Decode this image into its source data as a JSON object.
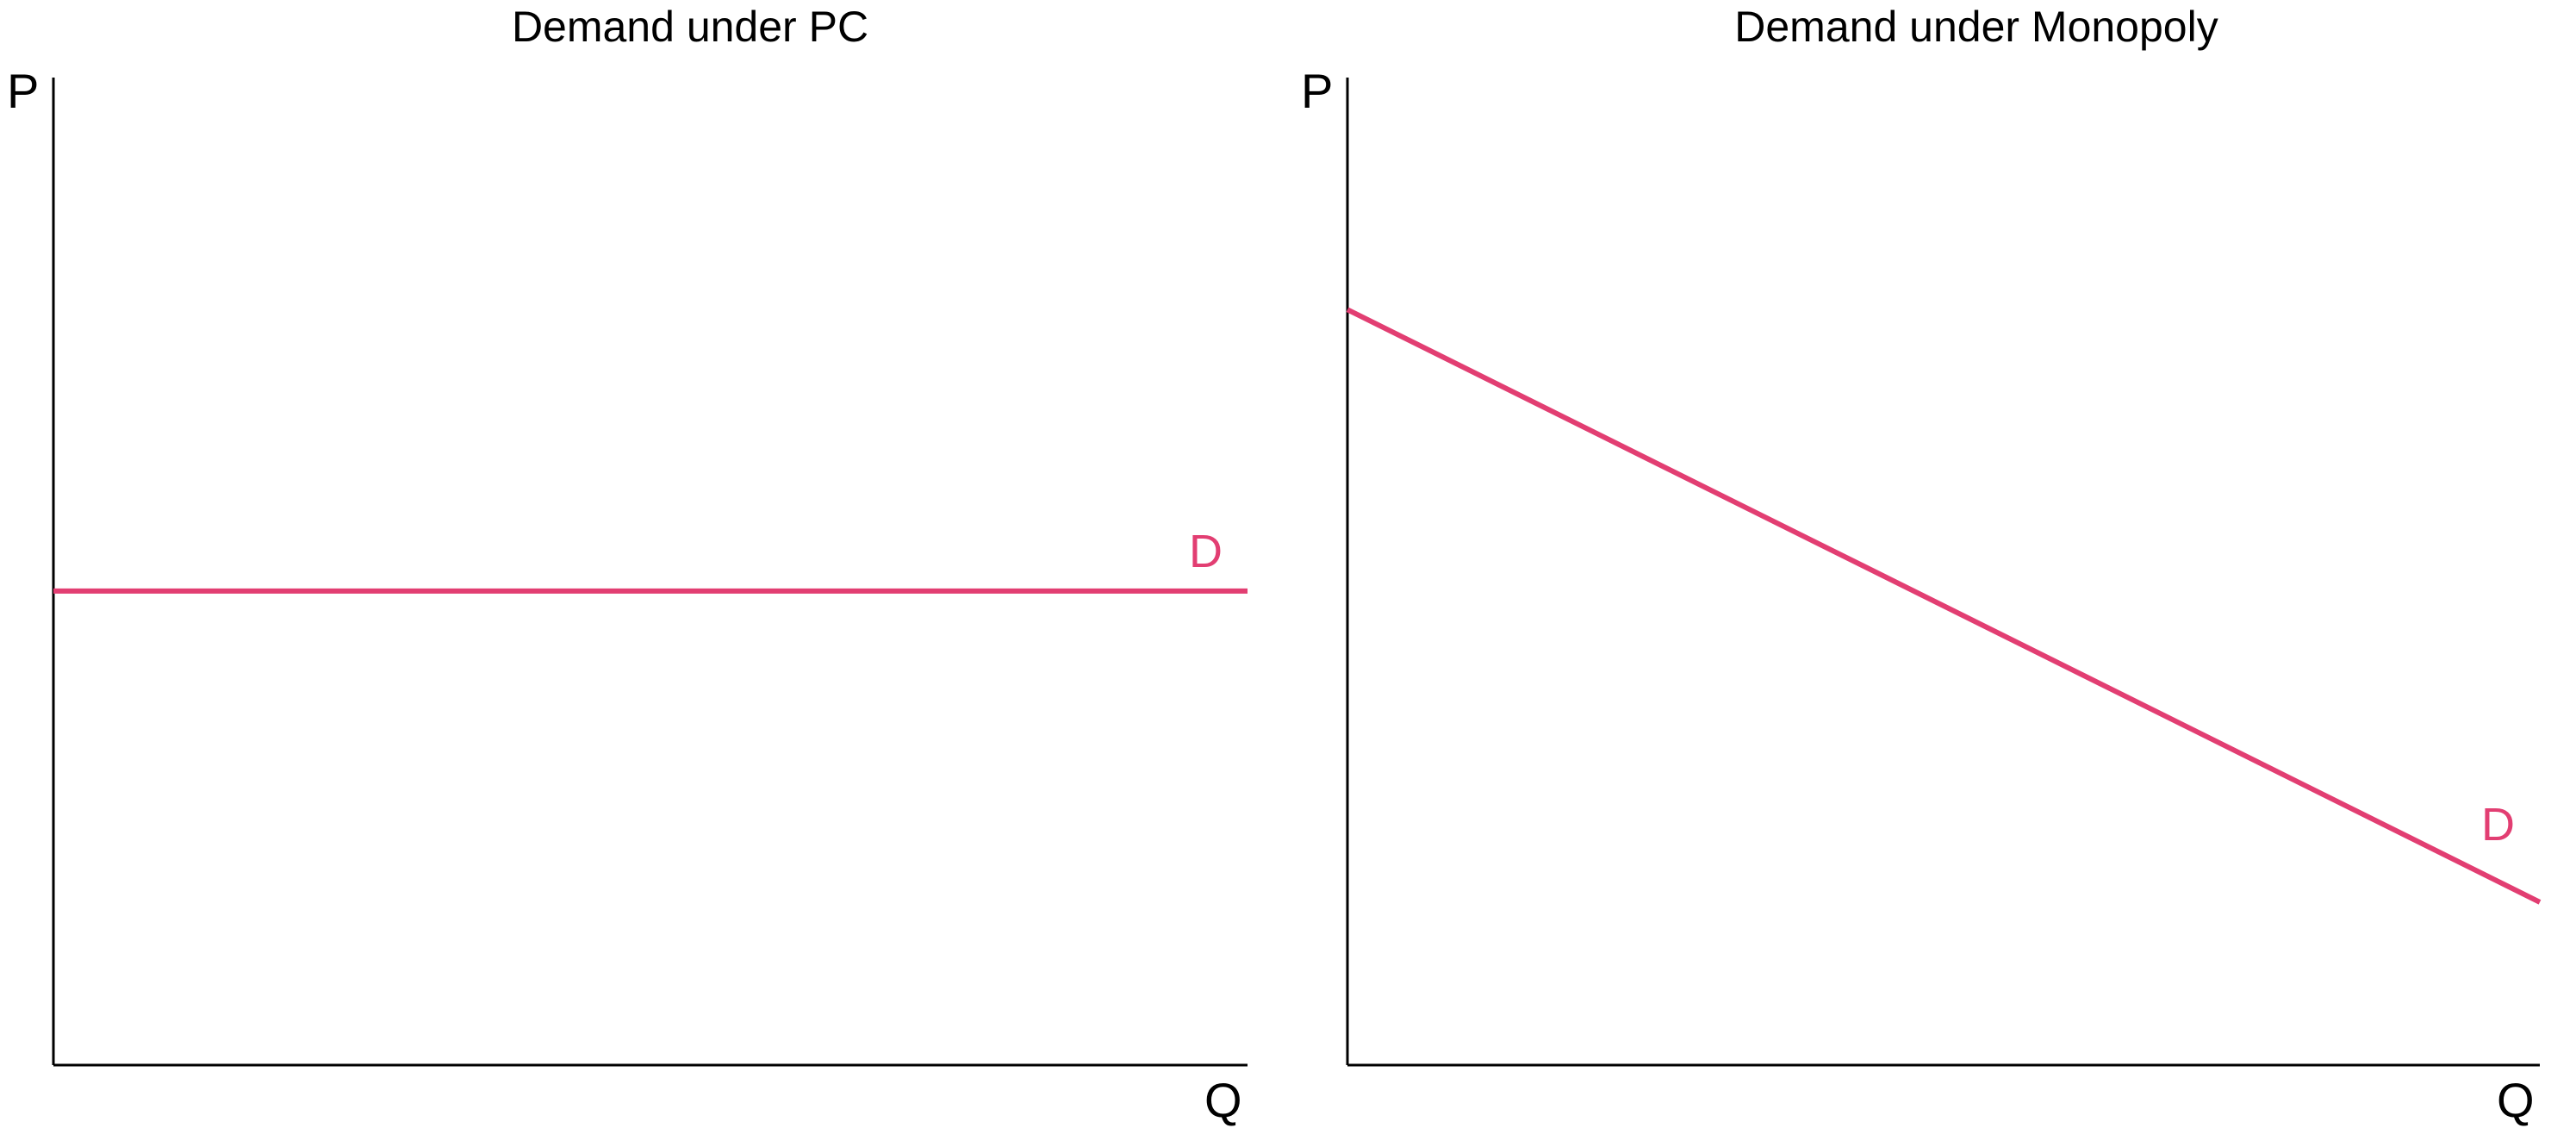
{
  "colors": {
    "demand": "#e23e72",
    "axis": "#000000",
    "background": "#ffffff"
  },
  "chart_data": [
    {
      "type": "line",
      "title": "Demand under PC",
      "xlabel": "Q",
      "ylabel": "P",
      "xlim": [
        0,
        1
      ],
      "ylim": [
        0,
        1
      ],
      "grid": false,
      "ticks": false,
      "series": [
        {
          "name": "D",
          "x": [
            0,
            1
          ],
          "y": [
            0.48,
            0.48
          ]
        }
      ]
    },
    {
      "type": "line",
      "title": "Demand under Monopoly",
      "xlabel": "Q",
      "ylabel": "P",
      "xlim": [
        0,
        1
      ],
      "ylim": [
        0,
        1
      ],
      "grid": false,
      "ticks": false,
      "series": [
        {
          "name": "D",
          "x": [
            0,
            1
          ],
          "y": [
            0.765,
            0.165
          ]
        }
      ]
    }
  ]
}
